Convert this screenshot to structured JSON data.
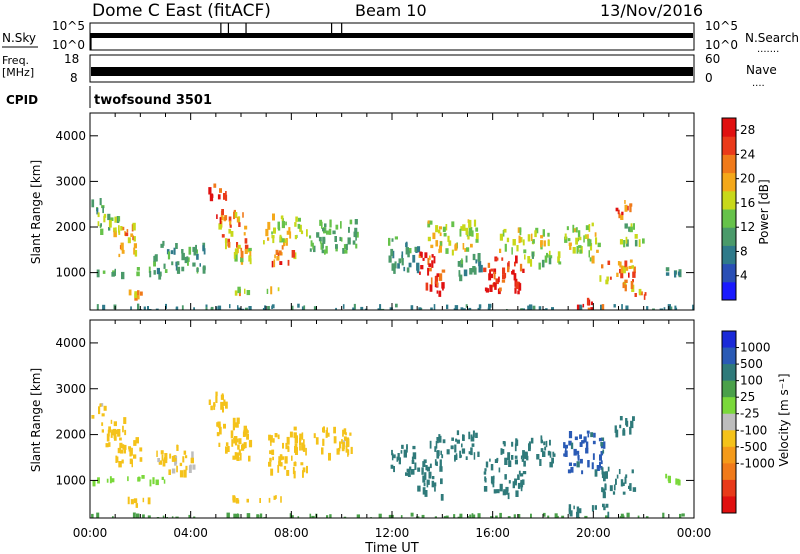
{
  "header": {
    "station": "Dome C East (fitACF)",
    "beam": "Beam 10",
    "date": "13/Nov/2016"
  },
  "params": {
    "nsky_label": "N.Sky",
    "nsky_tick_top": "10^5",
    "nsky_tick_bottom": "10^0",
    "nsearch_label": "N.Search",
    "nsearch_tick_top": "10^5",
    "nsearch_tick_bottom": "10^0",
    "freq_label_line1": "Freq.",
    "freq_label_line2": "[MHz]",
    "freq_tick_top": "18",
    "freq_tick_bottom": "8",
    "nave_label": "Nave",
    "nave_tick_top": "60",
    "nave_tick_bottom": "0",
    "cpid_label": "CPID",
    "cpid_value": "twofsound 3501"
  },
  "chart_data": [
    {
      "type": "heatmap",
      "panel": "power",
      "ylabel": "Slant Range [km]",
      "xlabel": "Time UT",
      "x_ticks": [
        "00:00",
        "04:00",
        "08:00",
        "12:00",
        "16:00",
        "20:00",
        "00:00"
      ],
      "x_range_hours": [
        0,
        24
      ],
      "y_ticks": [
        "1000",
        "2000",
        "3000",
        "4000"
      ],
      "ylim": [
        180,
        4500
      ],
      "colorbar": {
        "label": "Power [dB]",
        "ticks": [
          "4",
          "8",
          "12",
          "16",
          "20",
          "24",
          "28"
        ],
        "range": [
          0,
          30
        ],
        "colors": [
          "#1a1aff",
          "#2a4fb5",
          "#2f7a8a",
          "#4a9a6a",
          "#66c24a",
          "#c8d81a",
          "#f4a81a",
          "#f07a1a",
          "#ea3a1a",
          "#e01010"
        ]
      },
      "patches": [
        {
          "t0": 0.05,
          "t1": 0.55,
          "r0": 2400,
          "r1": 2700,
          "v": 10
        },
        {
          "t0": 0.25,
          "t1": 1.2,
          "r0": 1900,
          "r1": 2400,
          "v": 14
        },
        {
          "t0": 0.9,
          "t1": 1.8,
          "r0": 1400,
          "r1": 2100,
          "v": 20
        },
        {
          "t0": 0.0,
          "t1": 3.0,
          "r0": 1000,
          "r1": 1150,
          "v": 12
        },
        {
          "t0": 1.4,
          "t1": 2.3,
          "r0": 500,
          "r1": 650,
          "v": 22
        },
        {
          "t0": 0.0,
          "t1": 24.0,
          "r0": 200,
          "r1": 320,
          "v": 8
        },
        {
          "t0": 2.5,
          "t1": 4.6,
          "r0": 1100,
          "r1": 1700,
          "v": 10
        },
        {
          "t0": 4.7,
          "t1": 5.4,
          "r0": 2600,
          "r1": 3000,
          "v": 26
        },
        {
          "t0": 5.0,
          "t1": 6.2,
          "r0": 1600,
          "r1": 2400,
          "v": 22
        },
        {
          "t0": 5.6,
          "t1": 6.6,
          "r0": 1200,
          "r1": 1700,
          "v": 18
        },
        {
          "t0": 5.5,
          "t1": 7.6,
          "r0": 580,
          "r1": 700,
          "v": 18
        },
        {
          "t0": 6.8,
          "t1": 8.6,
          "r0": 1700,
          "r1": 2300,
          "v": 16
        },
        {
          "t0": 7.2,
          "t1": 8.2,
          "r0": 1250,
          "r1": 1650,
          "v": 22
        },
        {
          "t0": 8.6,
          "t1": 10.6,
          "r0": 1500,
          "r1": 2200,
          "v": 12
        },
        {
          "t0": 11.8,
          "t1": 13.0,
          "r0": 1100,
          "r1": 1800,
          "v": 10
        },
        {
          "t0": 13.0,
          "t1": 14.0,
          "r0": 600,
          "r1": 1500,
          "v": 26
        },
        {
          "t0": 13.4,
          "t1": 15.4,
          "r0": 1500,
          "r1": 2200,
          "v": 16
        },
        {
          "t0": 14.6,
          "t1": 15.5,
          "r0": 900,
          "r1": 1500,
          "v": 10
        },
        {
          "t0": 15.6,
          "t1": 17.2,
          "r0": 600,
          "r1": 1400,
          "v": 28
        },
        {
          "t0": 16.2,
          "t1": 18.2,
          "r0": 1500,
          "r1": 2000,
          "v": 16
        },
        {
          "t0": 17.2,
          "t1": 18.8,
          "r0": 1200,
          "r1": 1500,
          "v": 14
        },
        {
          "t0": 18.8,
          "t1": 20.2,
          "r0": 1300,
          "r1": 2100,
          "v": 16
        },
        {
          "t0": 19.2,
          "t1": 20.4,
          "r0": 220,
          "r1": 450,
          "v": 30
        },
        {
          "t0": 20.2,
          "t1": 21.6,
          "r0": 700,
          "r1": 1300,
          "v": 22
        },
        {
          "t0": 20.8,
          "t1": 21.6,
          "r0": 2200,
          "r1": 2600,
          "v": 26
        },
        {
          "t0": 21.0,
          "t1": 22.0,
          "r0": 1700,
          "r1": 2100,
          "v": 14
        },
        {
          "t0": 21.4,
          "t1": 22.2,
          "r0": 500,
          "r1": 650,
          "v": 20
        },
        {
          "t0": 22.8,
          "t1": 23.4,
          "r0": 1000,
          "r1": 1150,
          "v": 8
        }
      ]
    },
    {
      "type": "heatmap",
      "panel": "velocity",
      "ylabel": "Slant Range [km]",
      "xlabel": "Time UT",
      "x_ticks": [
        "00:00",
        "04:00",
        "08:00",
        "12:00",
        "16:00",
        "20:00",
        "00:00"
      ],
      "x_range_hours": [
        0,
        24
      ],
      "y_ticks": [
        "1000",
        "2000",
        "3000",
        "4000"
      ],
      "ylim": [
        180,
        4500
      ],
      "colorbar": {
        "label": "Velocity [m s⁻¹]",
        "ticks": [
          "1000",
          "500",
          "100",
          "25",
          "-25",
          "-100",
          "-500",
          "-1000"
        ],
        "levels": [
          1000,
          500,
          100,
          25,
          -25,
          -100,
          -500,
          -1000
        ],
        "colors": [
          "#1a2ad8",
          "#2a5ab5",
          "#2f7a7a",
          "#4aa04a",
          "#7ad83a",
          "#bdbdbd",
          "#f4c21a",
          "#f49a1a",
          "#f07a1a",
          "#e83a1a",
          "#e01010"
        ]
      },
      "patches": [
        {
          "t0": 0.05,
          "t1": 0.6,
          "r0": 2400,
          "r1": 2700,
          "v": -120
        },
        {
          "t0": 0.3,
          "t1": 1.4,
          "r0": 1800,
          "r1": 2400,
          "v": -150
        },
        {
          "t0": 1.0,
          "t1": 2.0,
          "r0": 1400,
          "r1": 2000,
          "v": -200
        },
        {
          "t0": 0.0,
          "t1": 3.0,
          "r0": 1000,
          "r1": 1150,
          "v": 0
        },
        {
          "t0": 1.4,
          "t1": 2.3,
          "r0": 500,
          "r1": 650,
          "v": -160
        },
        {
          "t0": 0.0,
          "t1": 24.0,
          "r0": 200,
          "r1": 300,
          "v": 60
        },
        {
          "t0": 2.6,
          "t1": 4.2,
          "r0": 1200,
          "r1": 1800,
          "v": -120
        },
        {
          "t0": 4.7,
          "t1": 5.4,
          "r0": 2500,
          "r1": 3000,
          "v": -200
        },
        {
          "t0": 5.0,
          "t1": 6.4,
          "r0": 1500,
          "r1": 2400,
          "v": -180
        },
        {
          "t0": 5.5,
          "t1": 7.6,
          "r0": 580,
          "r1": 720,
          "v": -150
        },
        {
          "t0": 7.0,
          "t1": 8.6,
          "r0": 1200,
          "r1": 2200,
          "v": -220
        },
        {
          "t0": 8.8,
          "t1": 10.4,
          "r0": 1600,
          "r1": 2200,
          "v": -130
        },
        {
          "t0": 11.9,
          "t1": 12.9,
          "r0": 1100,
          "r1": 1800,
          "v": 150
        },
        {
          "t0": 13.0,
          "t1": 14.0,
          "r0": 700,
          "r1": 1500,
          "v": 200
        },
        {
          "t0": 13.4,
          "t1": 15.4,
          "r0": 1500,
          "r1": 2100,
          "v": 300
        },
        {
          "t0": 15.6,
          "t1": 17.2,
          "r0": 700,
          "r1": 1500,
          "v": 250
        },
        {
          "t0": 16.3,
          "t1": 18.4,
          "r0": 1400,
          "r1": 2000,
          "v": 180
        },
        {
          "t0": 18.8,
          "t1": 20.4,
          "r0": 1200,
          "r1": 2100,
          "v": 600
        },
        {
          "t0": 19.0,
          "t1": 20.6,
          "r0": 260,
          "r1": 500,
          "v": 160
        },
        {
          "t0": 20.3,
          "t1": 21.6,
          "r0": 700,
          "r1": 1300,
          "v": 300
        },
        {
          "t0": 20.8,
          "t1": 21.6,
          "r0": 2100,
          "r1": 2500,
          "v": 200
        },
        {
          "t0": 22.8,
          "t1": 23.4,
          "r0": 1000,
          "r1": 1150,
          "v": 0
        }
      ]
    }
  ]
}
